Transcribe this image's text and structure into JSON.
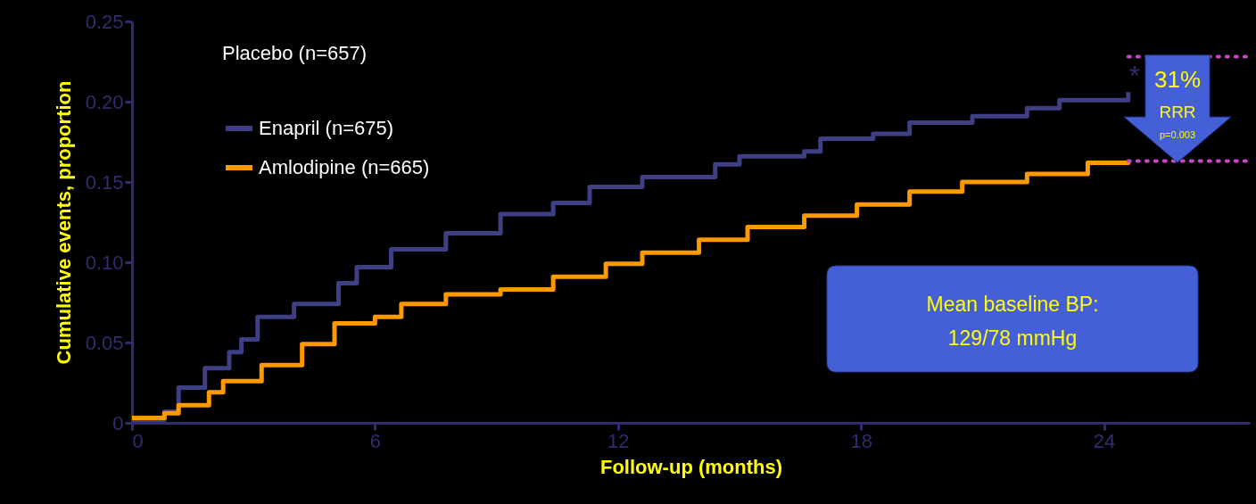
{
  "chart_data": {
    "type": "step",
    "xlabel": "Follow-up (months)",
    "ylabel": "Cumulative events, proportion",
    "xlim": [
      0,
      27.6
    ],
    "xticks": [
      0,
      6,
      12,
      18,
      24
    ],
    "ylim": [
      0,
      0.25
    ],
    "yticks": [
      0,
      0.05,
      {
        "value": 0.1,
        "label": "0.10"
      },
      0.15,
      {
        "value": 0.2,
        "label": "0.20"
      },
      0.25
    ],
    "legend": "top left",
    "grid": false,
    "series": [
      {
        "name": "Enapril (n=675)",
        "color": "#3f3f85",
        "x": [
          0,
          0.8,
          1.15,
          1.8,
          2.4,
          2.7,
          3.1,
          4.0,
          5.1,
          5.55,
          6.4,
          7.75,
          9.1,
          10.4,
          11.3,
          12.6,
          14.4,
          15.0,
          16.6,
          17.0,
          18.3,
          19.2,
          20.75,
          22.1,
          22.9,
          24.6
        ],
        "values": [
          0.002,
          0.007,
          0.022,
          0.034,
          0.044,
          0.052,
          0.066,
          0.074,
          0.087,
          0.097,
          0.108,
          0.118,
          0.13,
          0.137,
          0.147,
          0.153,
          0.161,
          0.166,
          0.169,
          0.177,
          0.18,
          0.187,
          0.191,
          0.196,
          0.201,
          0.206
        ]
      },
      {
        "name": "Amlodipine (n=665)",
        "color": "#ff9900",
        "x": [
          0,
          0.8,
          1.15,
          1.9,
          2.25,
          3.2,
          4.2,
          5.0,
          6.0,
          6.65,
          7.75,
          9.1,
          10.4,
          11.7,
          12.6,
          14.0,
          15.2,
          16.6,
          17.9,
          19.2,
          20.5,
          22.1,
          23.6,
          24.6
        ],
        "values": [
          0.003,
          0.006,
          0.011,
          0.019,
          0.026,
          0.036,
          0.049,
          0.062,
          0.066,
          0.074,
          0.08,
          0.083,
          0.091,
          0.099,
          0.106,
          0.114,
          0.122,
          0.129,
          0.136,
          0.144,
          0.15,
          0.155,
          0.162,
          0.163
        ]
      }
    ],
    "ref_lines": [
      {
        "axis": "y",
        "value": 0.228,
        "color": "#cc44cc",
        "line_style": "dotted"
      },
      {
        "axis": "y",
        "value": 0.163,
        "color": "#cc44cc",
        "line_style": "dotted"
      }
    ],
    "annotations": [
      "Placebo (n=657)",
      "*",
      "31%",
      "RRR",
      "p=0.003",
      "Mean baseline BP:",
      "129/78 mmHg"
    ]
  }
}
